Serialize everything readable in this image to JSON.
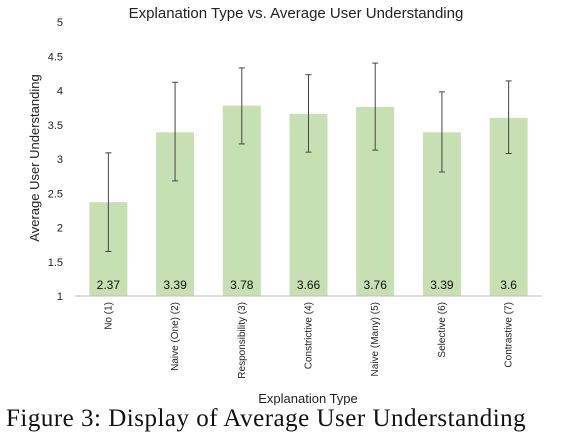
{
  "chart_data": {
    "type": "bar",
    "title": "Explanation Type vs. Average User Understanding",
    "xlabel": "Explanation Type",
    "ylabel": "Average User Understanding",
    "ylim": [
      1,
      5
    ],
    "yticks": [
      "1",
      "1.5",
      "2",
      "2.5",
      "3",
      "3.5",
      "4",
      "4.5",
      "5"
    ],
    "categories": [
      "No (1)",
      "Naive (One) (2)",
      "Responsibility (3)",
      "Constrictive (4)",
      "Naive (Many) (5)",
      "Selective (6)",
      "Contrastive (7)"
    ],
    "values": [
      2.37,
      3.39,
      3.78,
      3.66,
      3.76,
      3.39,
      3.6
    ],
    "value_labels": [
      "2.37",
      "3.39",
      "3.78",
      "3.66",
      "3.76",
      "3.39",
      "3.6"
    ],
    "error_low": [
      1.65,
      2.68,
      3.22,
      3.1,
      3.13,
      2.81,
      3.08
    ],
    "error_high": [
      3.09,
      4.12,
      4.33,
      4.23,
      4.4,
      3.98,
      4.14
    ],
    "grid": false,
    "legend": "none",
    "bar_color": "#c6e0b4",
    "error_bar_color": "#444444"
  },
  "caption": "Figure 3: Display of Average User Understanding"
}
